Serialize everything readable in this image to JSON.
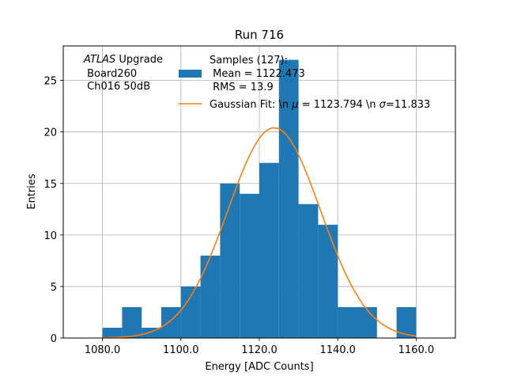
{
  "chart_data": {
    "type": "bar",
    "title": "Run 716",
    "xlabel": "Energy [ADC Counts]",
    "ylabel": "Entries",
    "xlim": [
      1070,
      1170
    ],
    "ylim": [
      0,
      28.35
    ],
    "grid": true,
    "x_ticks": [
      1080,
      1100,
      1120,
      1140,
      1160
    ],
    "x_tick_labels": [
      "1080.0",
      "1100.0",
      "1120.0",
      "1140.0",
      "1160.0"
    ],
    "y_ticks": [
      0,
      5,
      10,
      15,
      20,
      25
    ],
    "y_tick_labels": [
      "0",
      "5",
      "10",
      "15",
      "20",
      "25"
    ],
    "annotation": {
      "italic": "ATLAS",
      "rest": " Upgrade",
      "line2": " Board260",
      "line3": " Ch016 50dB"
    },
    "legend": {
      "placement": "top-right",
      "entries": [
        {
          "type": "bar",
          "lines": [
            "Samples (127):",
            " Mean = 1122.473",
            " RMS = 13.9"
          ],
          "color": "#1f77b4"
        },
        {
          "type": "line",
          "prefix": "Gaussian Fit: \\n ",
          "mu_symbol": "μ",
          "mid": " = 1123.794 \\n ",
          "sigma_symbol": "σ",
          "suffix": "=11.833",
          "color": "#ff7f0e"
        }
      ]
    },
    "bin_edges": [
      1080,
      1085,
      1090,
      1095,
      1100,
      1105,
      1110,
      1115,
      1120,
      1125,
      1130,
      1135,
      1140,
      1145,
      1150,
      1155,
      1160
    ],
    "series": [
      {
        "type": "histogram",
        "values": [
          1,
          3,
          1,
          3,
          5,
          8,
          15,
          14,
          17,
          27,
          13,
          11,
          3,
          3,
          0,
          3
        ],
        "color": "#1f77b4"
      },
      {
        "type": "gaussian",
        "mu": 1123.794,
        "sigma": 11.833,
        "amplitude": 20.4,
        "x_range": [
          1080,
          1160
        ],
        "color": "#ff7f0e"
      }
    ]
  }
}
